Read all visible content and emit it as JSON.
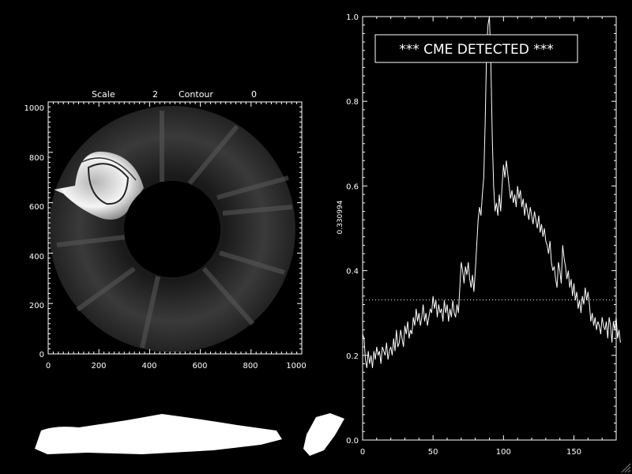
{
  "image_panel": {
    "header": {
      "scale_label": "Scale",
      "scale_value": "2",
      "contour_label": "Contour",
      "contour_value": "0"
    },
    "x_ticks": [
      "0",
      "200",
      "400",
      "600",
      "800",
      "1000"
    ],
    "y_ticks": [
      "0",
      "200",
      "400",
      "600",
      "800",
      "1000"
    ]
  },
  "colors": {
    "background": "#000000",
    "foreground": "#ffffff"
  },
  "chart_data": {
    "type": "line",
    "title": "",
    "annotation": "*** CME DETECTED ***",
    "xlabel": "",
    "ylabel": "0.330994",
    "xlim": [
      0,
      180
    ],
    "ylim": [
      0.0,
      1.0
    ],
    "x_ticks": [
      "0",
      "50",
      "100",
      "150"
    ],
    "y_ticks": [
      "0.0",
      "0.2",
      "0.4",
      "0.6",
      "0.8",
      "1.0"
    ],
    "threshold": 0.330994,
    "series": [
      {
        "values": [
          0.25,
          0.24,
          0.19,
          0.17,
          0.21,
          0.18,
          0.2,
          0.17,
          0.21,
          0.19,
          0.22,
          0.2,
          0.21,
          0.18,
          0.22,
          0.21,
          0.2,
          0.23,
          0.19,
          0.21,
          0.22,
          0.2,
          0.24,
          0.21,
          0.26,
          0.22,
          0.23,
          0.26,
          0.24,
          0.22,
          0.27,
          0.25,
          0.28,
          0.24,
          0.26,
          0.25,
          0.29,
          0.27,
          0.31,
          0.28,
          0.3,
          0.27,
          0.29,
          0.32,
          0.28,
          0.3,
          0.27,
          0.29,
          0.31,
          0.3,
          0.34,
          0.31,
          0.33,
          0.29,
          0.32,
          0.3,
          0.31,
          0.28,
          0.33,
          0.3,
          0.32,
          0.28,
          0.31,
          0.29,
          0.33,
          0.3,
          0.29,
          0.32,
          0.3,
          0.36,
          0.42,
          0.4,
          0.37,
          0.41,
          0.39,
          0.42,
          0.38,
          0.36,
          0.39,
          0.35,
          0.4,
          0.46,
          0.52,
          0.55,
          0.53,
          0.58,
          0.62,
          0.75,
          0.92,
          0.98,
          1.0,
          0.9,
          0.72,
          0.6,
          0.54,
          0.56,
          0.53,
          0.58,
          0.54,
          0.6,
          0.65,
          0.62,
          0.66,
          0.63,
          0.6,
          0.57,
          0.59,
          0.56,
          0.58,
          0.55,
          0.6,
          0.57,
          0.59,
          0.55,
          0.57,
          0.53,
          0.56,
          0.54,
          0.52,
          0.55,
          0.53,
          0.51,
          0.54,
          0.52,
          0.5,
          0.53,
          0.49,
          0.51,
          0.48,
          0.5,
          0.47,
          0.46,
          0.44,
          0.47,
          0.42,
          0.4,
          0.41,
          0.38,
          0.36,
          0.42,
          0.4,
          0.37,
          0.46,
          0.43,
          0.41,
          0.38,
          0.4,
          0.36,
          0.38,
          0.34,
          0.37,
          0.33,
          0.35,
          0.31,
          0.33,
          0.3,
          0.34,
          0.32,
          0.36,
          0.33,
          0.35,
          0.32,
          0.28,
          0.3,
          0.27,
          0.29,
          0.26,
          0.28,
          0.27,
          0.25,
          0.29,
          0.27,
          0.26,
          0.28,
          0.24,
          0.29,
          0.27,
          0.23,
          0.28,
          0.26,
          0.29,
          0.24,
          0.26,
          0.23
        ]
      }
    ]
  }
}
